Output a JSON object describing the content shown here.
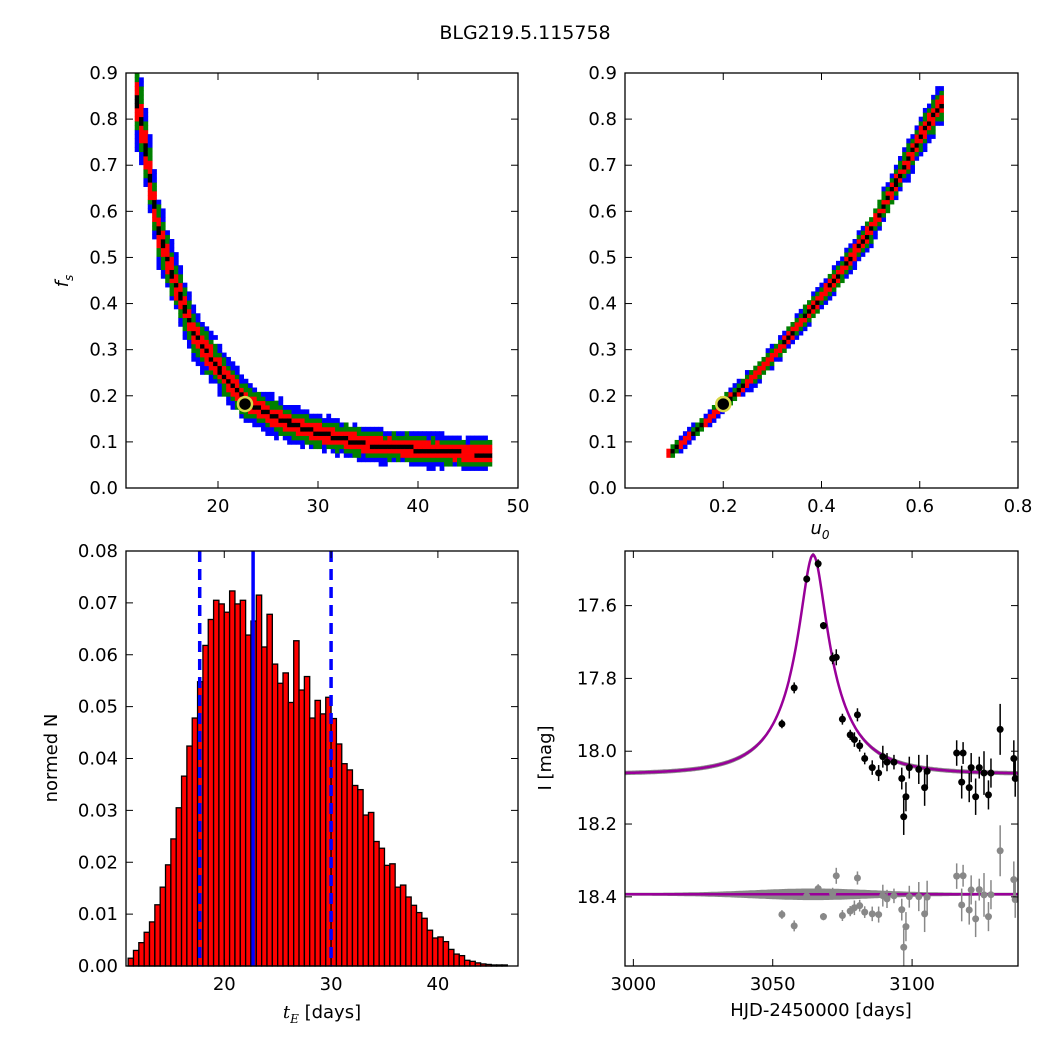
{
  "figure": {
    "title": "BLG219.5.115758"
  },
  "chart_data": [
    {
      "type": "heatmap",
      "panel": "top-left",
      "xlabel": "",
      "ylabel": "f_s",
      "xlim": [
        10.8,
        50
      ],
      "ylim": [
        0,
        0.9
      ],
      "xticks": [
        20,
        30,
        40,
        50
      ],
      "yticks": [
        0.0,
        0.1,
        0.2,
        0.3,
        0.4,
        0.5,
        0.6,
        0.7,
        0.8,
        0.9
      ],
      "levels": [
        {
          "name": "3sigma",
          "color": "#0000ff"
        },
        {
          "name": "2sigma",
          "color": "#008000"
        },
        {
          "name": "1sigma",
          "color": "#ff0000"
        },
        {
          "name": "best",
          "color": "#000000"
        }
      ],
      "ridge": [
        [
          12.0,
          0.84
        ],
        [
          13.0,
          0.7
        ],
        [
          14.0,
          0.56
        ],
        [
          15.5,
          0.46
        ],
        [
          17.5,
          0.34
        ],
        [
          20,
          0.26
        ],
        [
          22.7,
          0.19
        ],
        [
          26,
          0.15
        ],
        [
          30,
          0.12
        ],
        [
          35,
          0.095
        ],
        [
          40,
          0.085
        ],
        [
          45,
          0.075
        ],
        [
          47,
          0.075
        ]
      ],
      "best_fit": {
        "x": 22.7,
        "y": 0.182
      }
    },
    {
      "type": "heatmap",
      "panel": "top-right",
      "xlabel": "u_0",
      "ylabel": "",
      "xlim": [
        0,
        0.8
      ],
      "ylim": [
        0,
        0.9
      ],
      "xticks": [
        0.2,
        0.4,
        0.6,
        0.8
      ],
      "yticks": [
        0.0,
        0.1,
        0.2,
        0.3,
        0.4,
        0.5,
        0.6,
        0.7,
        0.8,
        0.9
      ],
      "ridge": [
        [
          0.09,
          0.075
        ],
        [
          0.15,
          0.13
        ],
        [
          0.2,
          0.182
        ],
        [
          0.26,
          0.24
        ],
        [
          0.32,
          0.31
        ],
        [
          0.38,
          0.39
        ],
        [
          0.44,
          0.47
        ],
        [
          0.5,
          0.56
        ],
        [
          0.55,
          0.66
        ],
        [
          0.6,
          0.76
        ],
        [
          0.64,
          0.83
        ]
      ],
      "best_fit": {
        "x": 0.2,
        "y": 0.182
      }
    },
    {
      "type": "bar",
      "panel": "bottom-left",
      "xlabel": "t_E [days]",
      "ylabel": "normed N",
      "xlim": [
        10.8,
        47.5
      ],
      "ylim": [
        0,
        0.08
      ],
      "xticks": [
        20,
        30,
        40
      ],
      "yticks": [
        0.0,
        0.01,
        0.02,
        0.03,
        0.04,
        0.05,
        0.06,
        0.07,
        0.08
      ],
      "bin_start": 11.0,
      "bin_width": 0.5,
      "values": [
        0.0015,
        0.003,
        0.0045,
        0.0065,
        0.0085,
        0.0118,
        0.0152,
        0.0195,
        0.0245,
        0.0305,
        0.0366,
        0.0424,
        0.0478,
        0.0548,
        0.0618,
        0.0668,
        0.0705,
        0.0698,
        0.0682,
        0.0723,
        0.0698,
        0.0705,
        0.0638,
        0.0665,
        0.0715,
        0.0615,
        0.0678,
        0.0582,
        0.0545,
        0.0565,
        0.0508,
        0.0627,
        0.0532,
        0.0558,
        0.0478,
        0.0512,
        0.0486,
        0.0518,
        0.0477,
        0.0428,
        0.039,
        0.0378,
        0.0348,
        0.034,
        0.0291,
        0.0296,
        0.024,
        0.0227,
        0.0194,
        0.0197,
        0.0152,
        0.0156,
        0.0133,
        0.0117,
        0.0103,
        0.0092,
        0.0069,
        0.0054,
        0.0056,
        0.0047,
        0.0032,
        0.0023,
        0.002,
        0.0011,
        0.0009,
        0.0006,
        0.0004,
        0.0003,
        0.0002,
        0.0002,
        0.0002
      ],
      "bar_color": "#ff0000",
      "vlines": [
        {
          "x": 17.7,
          "style": "dashed",
          "color": "#0000ff"
        },
        {
          "x": 22.7,
          "style": "solid",
          "color": "#0000ff"
        },
        {
          "x": 30.0,
          "style": "dashed",
          "color": "#0000ff"
        }
      ]
    },
    {
      "type": "line",
      "panel": "bottom-right",
      "xlabel": "HJD-2450000 [days]",
      "ylabel": "I [mag]",
      "xlim": [
        2997,
        3138
      ],
      "ylim": [
        18.59,
        17.45
      ],
      "xticks": [
        3000,
        3050,
        3100
      ],
      "yticks": [
        17.6,
        17.8,
        18.0,
        18.2,
        18.4
      ],
      "model": {
        "t0": 3064.5,
        "u0": 0.2,
        "tE": 22.7,
        "baseline": 18.063,
        "fs": 0.182,
        "color": "#990099"
      },
      "residual_baseline": 18.393,
      "points": [
        [
          3053.3,
          17.925,
          0.012
        ],
        [
          3057.7,
          17.826,
          0.015
        ],
        [
          3062.2,
          17.527,
          0.01
        ],
        [
          3066.3,
          17.485,
          0.012
        ],
        [
          3068.2,
          17.655,
          0.01
        ],
        [
          3071.5,
          17.745,
          0.016
        ],
        [
          3072.8,
          17.742,
          0.022
        ],
        [
          3075.0,
          17.912,
          0.015
        ],
        [
          3077.8,
          17.955,
          0.014
        ],
        [
          3079.3,
          17.968,
          0.02
        ],
        [
          3080.4,
          17.9,
          0.018
        ],
        [
          3081.2,
          17.985,
          0.016
        ],
        [
          3083.0,
          18.02,
          0.016
        ],
        [
          3085.7,
          18.045,
          0.02
        ],
        [
          3088.0,
          18.06,
          0.022
        ],
        [
          3089.5,
          18.015,
          0.03
        ],
        [
          3091.0,
          18.03,
          0.025
        ],
        [
          3093.5,
          18.03,
          0.02
        ],
        [
          3096.3,
          18.075,
          0.03
        ],
        [
          3097.0,
          18.18,
          0.05
        ],
        [
          3097.8,
          18.125,
          0.04
        ],
        [
          3099.0,
          18.045,
          0.03
        ],
        [
          3102.4,
          18.05,
          0.04
        ],
        [
          3104.5,
          18.1,
          0.05
        ],
        [
          3105.4,
          18.055,
          0.045
        ],
        [
          3116.0,
          18.005,
          0.035
        ],
        [
          3117.8,
          18.085,
          0.045
        ],
        [
          3118.3,
          18.005,
          0.03
        ],
        [
          3120.5,
          18.1,
          0.04
        ],
        [
          3121.2,
          18.045,
          0.04
        ],
        [
          3122.8,
          18.125,
          0.05
        ],
        [
          3124.1,
          18.045,
          0.03
        ],
        [
          3125.8,
          18.06,
          0.06
        ],
        [
          3127.4,
          18.12,
          0.04
        ],
        [
          3128.3,
          18.06,
          0.04
        ],
        [
          3131.6,
          17.94,
          0.07
        ],
        [
          3136.5,
          18.02,
          0.05
        ],
        [
          3137.0,
          18.075,
          0.05
        ]
      ]
    }
  ]
}
